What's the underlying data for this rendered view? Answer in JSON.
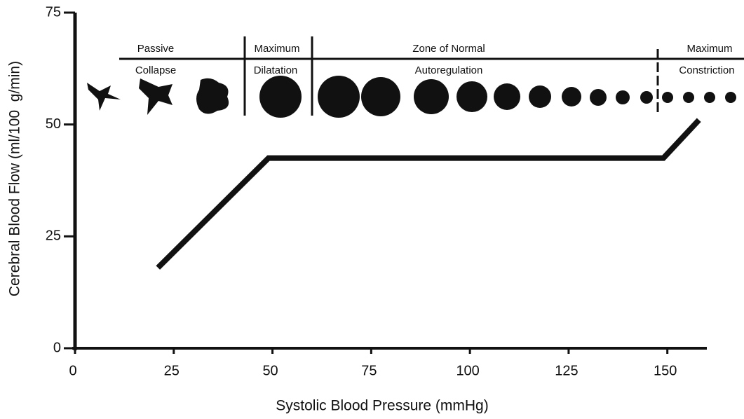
{
  "chart_data": {
    "type": "line",
    "x": [
      21,
      49,
      149,
      158
    ],
    "values": [
      18,
      42.5,
      42.5,
      51
    ],
    "color": "#111111",
    "xlabel": "Systolic Blood Pressure (mmHg)",
    "ylabel": "Cerebral Blood Flow (ml/100  g/min)",
    "xlim": [
      0,
      160
    ],
    "ylim": [
      0,
      75
    ],
    "xticks": [
      0,
      25,
      50,
      75,
      100,
      125,
      150
    ],
    "yticks": [
      0,
      25,
      50,
      75
    ],
    "zones": [
      [
        "Passive",
        "Collapse"
      ],
      [
        "Maximum",
        "Dilatation"
      ],
      [
        "Zone of Normal",
        "Autoregulation"
      ],
      [
        "Maximum",
        "Constriction"
      ]
    ]
  }
}
